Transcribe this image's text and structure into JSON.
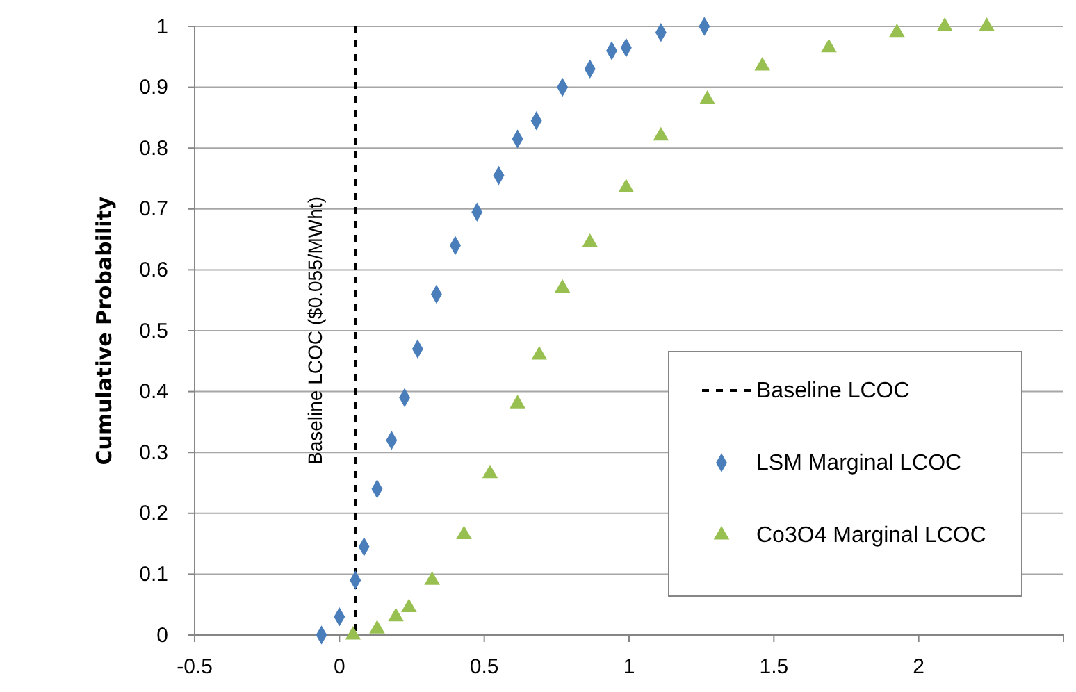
{
  "chart_data": {
    "type": "scatter",
    "ylabel": "Cumulative Probability",
    "xlim": [
      -0.5,
      2.5
    ],
    "xticks": [
      -0.5,
      0,
      0.5,
      1,
      1.5,
      2
    ],
    "ylim": [
      0,
      1
    ],
    "yticks": [
      0,
      0.1,
      0.2,
      0.3,
      0.4,
      0.5,
      0.6,
      0.7,
      0.8,
      0.9,
      1
    ],
    "grid": "y",
    "legend": "bottom right",
    "ref_lines": [
      {
        "axis": "x",
        "value": 0.055,
        "label": "Baseline LCOC ($0.055/MWht)",
        "color": "#000000",
        "line_style": "dashed"
      }
    ],
    "annotations": [
      "Baseline LCOC"
    ],
    "series": [
      {
        "name": "LSM Marginal LCOC",
        "color": "#4a7ebb",
        "marker": "diamond",
        "x": [
          -0.062,
          0.0,
          0.055,
          0.085,
          0.13,
          0.18,
          0.225,
          0.27,
          0.335,
          0.4,
          0.475,
          0.55,
          0.615,
          0.68,
          0.77,
          0.865,
          0.94,
          0.99,
          1.11,
          1.26
        ],
        "values": [
          0,
          0.03,
          0.09,
          0.145,
          0.24,
          0.32,
          0.39,
          0.47,
          0.56,
          0.64,
          0.695,
          0.755,
          0.815,
          0.845,
          0.9,
          0.93,
          0.96,
          0.965,
          0.99,
          1.0
        ]
      },
      {
        "name": "Co3O4 Marginal LCOC",
        "color": "#98c050",
        "marker": "triangle",
        "x": [
          0.047,
          0.13,
          0.195,
          0.24,
          0.32,
          0.43,
          0.52,
          0.615,
          0.69,
          0.77,
          0.865,
          0.99,
          1.11,
          1.27,
          1.46,
          1.69,
          1.925,
          2.09,
          2.235
        ],
        "values": [
          0,
          0.01,
          0.03,
          0.045,
          0.09,
          0.165,
          0.265,
          0.38,
          0.46,
          0.57,
          0.645,
          0.735,
          0.82,
          0.88,
          0.935,
          0.965,
          0.99,
          1.0,
          1.0
        ]
      }
    ]
  }
}
